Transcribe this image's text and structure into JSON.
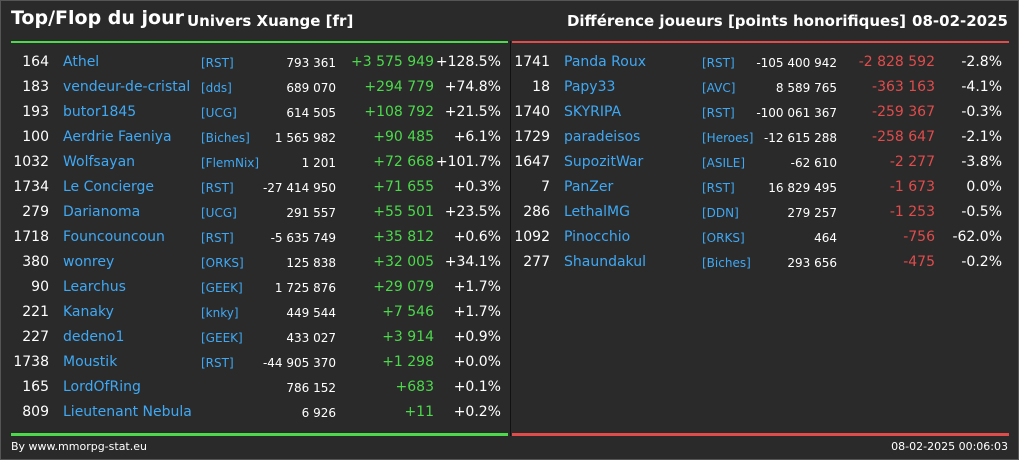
{
  "header": {
    "title": "Top/Flop du jour",
    "universe": "Univers Xuange [fr]",
    "criteria": "Différence joueurs [points honorifiques]",
    "date": "08-02-2025"
  },
  "top": [
    {
      "rank": "164",
      "name": "Athel",
      "alliance": "[RST]",
      "points": "793 361",
      "diff": "+3 575 949",
      "pct": "+128.5%"
    },
    {
      "rank": "183",
      "name": "vendeur-de-cristal",
      "alliance": "[dds]",
      "points": "689 070",
      "diff": "+294 779",
      "pct": "+74.8%"
    },
    {
      "rank": "193",
      "name": "butor1845",
      "alliance": "[UCG]",
      "points": "614 505",
      "diff": "+108 792",
      "pct": "+21.5%"
    },
    {
      "rank": "100",
      "name": "Aerdrie Faeniya",
      "alliance": "[Biches]",
      "points": "1 565 982",
      "diff": "+90 485",
      "pct": "+6.1%"
    },
    {
      "rank": "1032",
      "name": "Wolfsayan",
      "alliance": "[FlemNix]",
      "points": "1 201",
      "diff": "+72 668",
      "pct": "+101.7%"
    },
    {
      "rank": "1734",
      "name": "Le Concierge",
      "alliance": "[RST]",
      "points": "-27 414 950",
      "diff": "+71 655",
      "pct": "+0.3%"
    },
    {
      "rank": "279",
      "name": "Darianoma",
      "alliance": "[UCG]",
      "points": "291 557",
      "diff": "+55 501",
      "pct": "+23.5%"
    },
    {
      "rank": "1718",
      "name": "Founcouncoun",
      "alliance": "[RST]",
      "points": "-5 635 749",
      "diff": "+35 812",
      "pct": "+0.6%"
    },
    {
      "rank": "380",
      "name": "wonrey",
      "alliance": "[ORKS]",
      "points": "125 838",
      "diff": "+32 005",
      "pct": "+34.1%"
    },
    {
      "rank": "90",
      "name": "Learchus",
      "alliance": "[GEEK]",
      "points": "1 725 876",
      "diff": "+29 079",
      "pct": "+1.7%"
    },
    {
      "rank": "221",
      "name": "Kanaky",
      "alliance": "[knky]",
      "points": "449 544",
      "diff": "+7 546",
      "pct": "+1.7%"
    },
    {
      "rank": "227",
      "name": "dedeno1",
      "alliance": "[GEEK]",
      "points": "433 027",
      "diff": "+3 914",
      "pct": "+0.9%"
    },
    {
      "rank": "1738",
      "name": "Moustik",
      "alliance": "[RST]",
      "points": "-44 905 370",
      "diff": "+1 298",
      "pct": "+0.0%"
    },
    {
      "rank": "165",
      "name": "LordOfRing",
      "alliance": "",
      "points": "786 152",
      "diff": "+683",
      "pct": "+0.1%"
    },
    {
      "rank": "809",
      "name": "Lieutenant Nebula",
      "alliance": "",
      "points": "6 926",
      "diff": "+11",
      "pct": "+0.2%"
    }
  ],
  "flop": [
    {
      "rank": "1741",
      "name": "Panda Roux",
      "alliance": "[RST]",
      "points": "-105 400 942",
      "diff": "-2 828 592",
      "pct": "-2.8%"
    },
    {
      "rank": "18",
      "name": "Papy33",
      "alliance": "[AVC]",
      "points": "8 589 765",
      "diff": "-363 163",
      "pct": "-4.1%"
    },
    {
      "rank": "1740",
      "name": "SKYRIPA",
      "alliance": "[RST]",
      "points": "-100 061 367",
      "diff": "-259 367",
      "pct": "-0.3%"
    },
    {
      "rank": "1729",
      "name": "paradeisos",
      "alliance": "[Heroes]",
      "points": "-12 615 288",
      "diff": "-258 647",
      "pct": "-2.1%"
    },
    {
      "rank": "1647",
      "name": "SupozitWar",
      "alliance": "[ASILE]",
      "points": "-62 610",
      "diff": "-2 277",
      "pct": "-3.8%"
    },
    {
      "rank": "7",
      "name": "PanZer",
      "alliance": "[RST]",
      "points": "16 829 495",
      "diff": "-1 673",
      "pct": "0.0%"
    },
    {
      "rank": "286",
      "name": "LethalMG",
      "alliance": "[DDN]",
      "points": "279 257",
      "diff": "-1 253",
      "pct": "-0.5%"
    },
    {
      "rank": "1092",
      "name": "Pinocchio",
      "alliance": "[ORKS]",
      "points": "464",
      "diff": "-756",
      "pct": "-62.0%"
    },
    {
      "rank": "277",
      "name": "Shaundakul",
      "alliance": "[Biches]",
      "points": "293 656",
      "diff": "-475",
      "pct": "-0.2%"
    }
  ],
  "footer": {
    "credit": "By www.mmorpg-stat.eu",
    "timestamp": "08-02-2025 00:06:03"
  },
  "colors": {
    "background": "#2a2a2a",
    "positive": "#4cd94c",
    "negative": "#e04c4c",
    "link": "#3fa9f5"
  }
}
